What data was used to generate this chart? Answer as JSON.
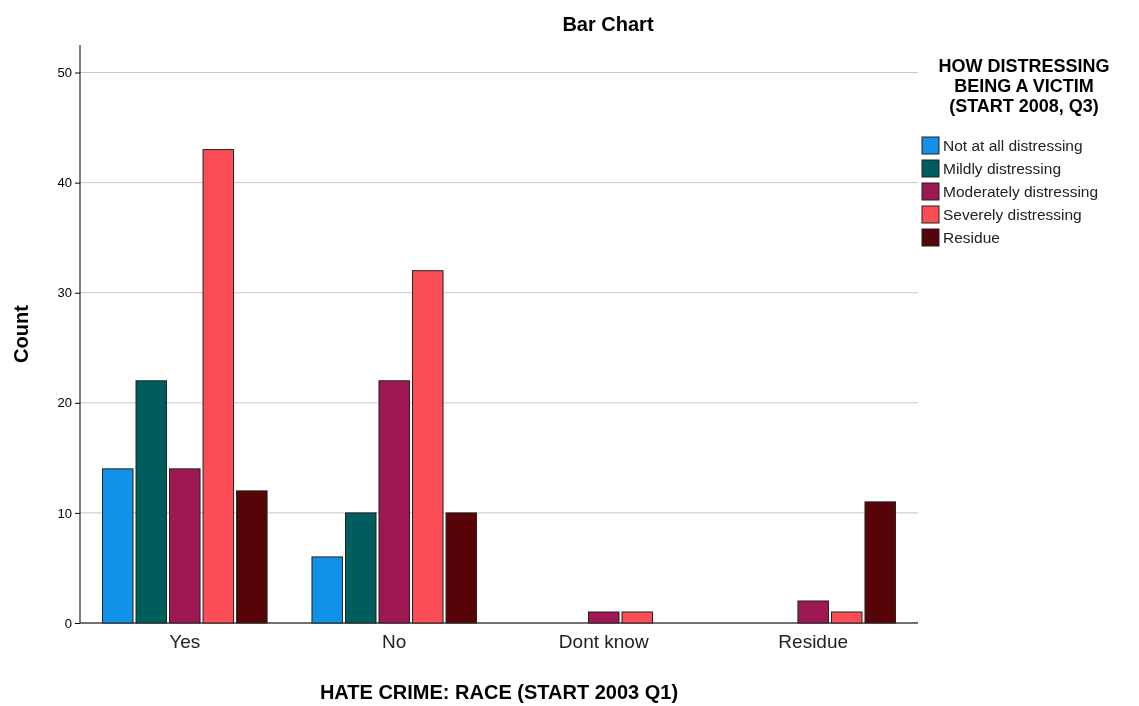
{
  "chart_data": {
    "type": "bar",
    "title": "Bar Chart",
    "xlabel": "HATE CRIME: RACE (START 2003 Q1)",
    "ylabel": "Count",
    "legend_title": "HOW DISTRESSING BEING A VICTIM (START 2008, Q3)",
    "categories": [
      "Yes",
      "No",
      "Dont know",
      "Residue"
    ],
    "series": [
      {
        "name": "Not at all distressing",
        "color": "#1192e8",
        "values": [
          14,
          6,
          null,
          null
        ]
      },
      {
        "name": "Mildly distressing",
        "color": "#005d5d",
        "values": [
          22,
          10,
          null,
          null
        ]
      },
      {
        "name": "Moderately distressing",
        "color": "#9f1853",
        "values": [
          14,
          22,
          1,
          2
        ]
      },
      {
        "name": "Severely distressing",
        "color": "#fa4d56",
        "values": [
          43,
          32,
          1,
          1
        ]
      },
      {
        "name": "Residue",
        "color": "#570408",
        "values": [
          12,
          10,
          null,
          11
        ]
      }
    ],
    "ylim": [
      0,
      52.5
    ],
    "yticks": [
      0,
      10,
      20,
      30,
      40,
      50
    ],
    "grid": "y",
    "legend": "right"
  }
}
